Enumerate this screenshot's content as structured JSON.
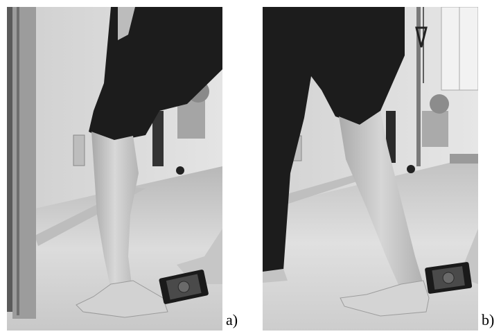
{
  "figure": {
    "panels": [
      {
        "id": "a",
        "label": "a)"
      },
      {
        "id": "b",
        "label": "b)"
      }
    ]
  }
}
